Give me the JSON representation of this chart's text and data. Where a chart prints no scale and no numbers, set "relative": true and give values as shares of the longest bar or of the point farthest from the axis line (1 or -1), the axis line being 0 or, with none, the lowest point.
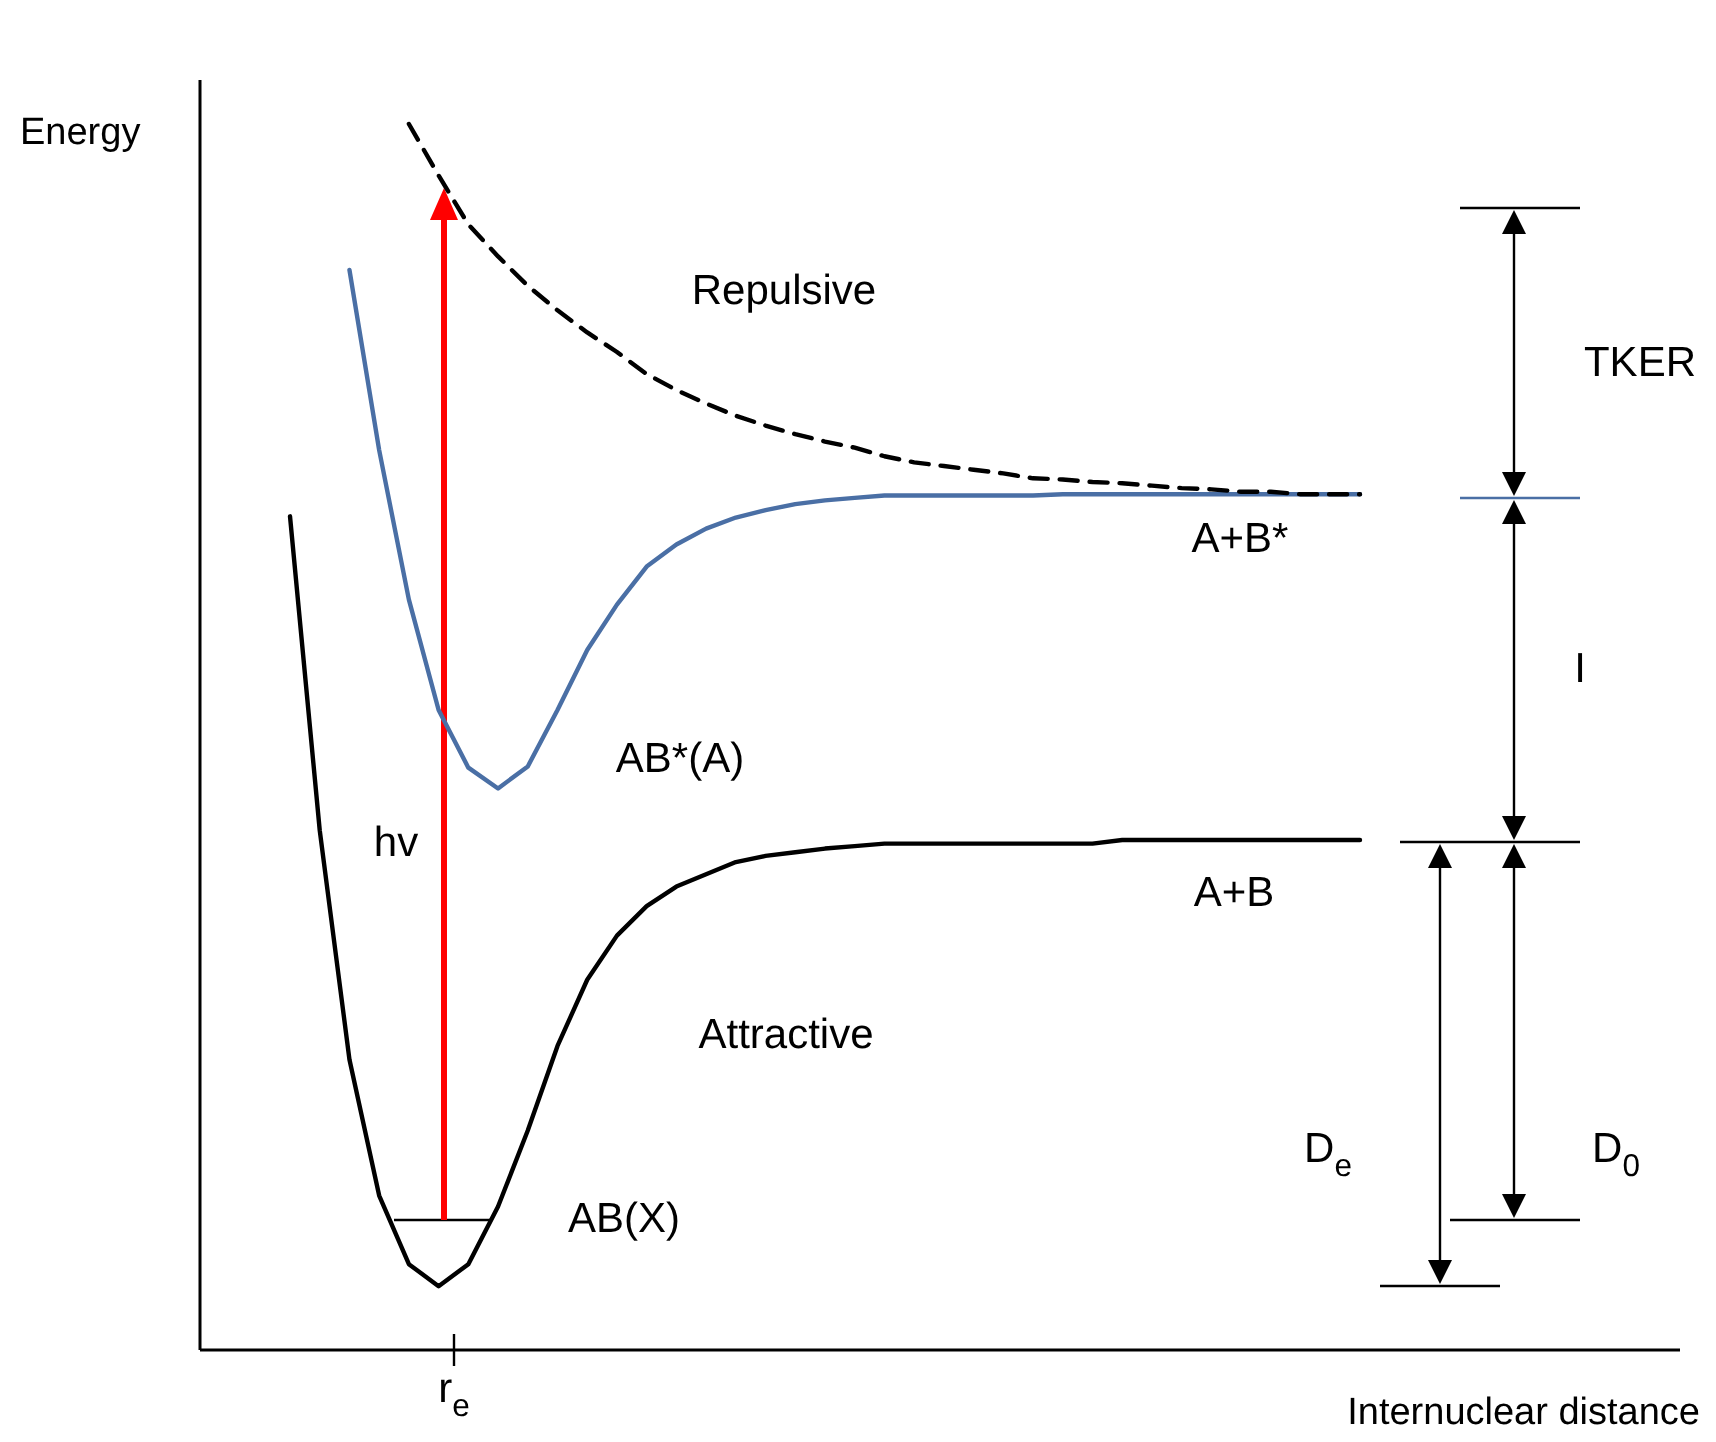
{
  "chart_data": {
    "type": "line",
    "relative": true,
    "xlabel": "Internuclear distance",
    "ylabel": "Energy",
    "categories": [
      null,
      null,
      null,
      null,
      null,
      null,
      null,
      null,
      null,
      null,
      null,
      null,
      null,
      null,
      null,
      null,
      null,
      null,
      null,
      null,
      null,
      null,
      null,
      null,
      null,
      null,
      null,
      null,
      null,
      null,
      null,
      null,
      null,
      null,
      null,
      null,
      null
    ],
    "series": [
      {
        "color": "#000000",
        "line_style": "solid",
        "values": [
          0.68,
          0.424,
          0.237,
          0.126,
          0.07,
          0.052,
          0.07,
          0.117,
          0.179,
          0.248,
          0.302,
          0.338,
          0.362,
          0.378,
          0.388,
          0.398,
          0.403,
          0.406,
          0.409,
          0.411,
          0.413,
          0.413,
          0.413,
          0.413,
          0.413,
          0.413,
          0.413,
          0.413,
          0.416,
          0.416,
          0.416,
          0.416,
          0.416,
          0.416,
          0.416,
          0.416,
          0.416
        ]
      },
      {
        "color": "#4a6fa5",
        "line_style": "solid",
        "values": [
          null,
          null,
          0.881,
          0.734,
          0.612,
          0.522,
          0.475,
          0.458,
          0.476,
          0.522,
          0.571,
          0.608,
          0.639,
          0.657,
          0.67,
          0.679,
          0.685,
          0.69,
          0.693,
          0.695,
          0.697,
          0.697,
          0.697,
          0.697,
          0.697,
          0.697,
          0.698,
          0.698,
          0.698,
          0.698,
          0.698,
          0.698,
          0.698,
          0.698,
          0.698,
          0.698,
          0.698
        ]
      },
      {
        "color": "#000000",
        "line_style": "dashed",
        "values": [
          null,
          null,
          null,
          null,
          1.0,
          0.958,
          0.918,
          0.892,
          0.868,
          0.848,
          0.83,
          0.814,
          0.796,
          0.783,
          0.772,
          0.762,
          0.754,
          0.747,
          0.741,
          0.736,
          0.729,
          0.724,
          0.721,
          0.718,
          0.715,
          0.711,
          0.71,
          0.708,
          0.707,
          0.705,
          0.703,
          0.702,
          0.7,
          0.7,
          0.698,
          0.698,
          0.698
        ]
      }
    ],
    "annotations": [
      "Repulsive",
      "A+B*",
      "TKER",
      "AB*(A)",
      "I",
      "hv",
      "A+B",
      "Attractive",
      "D$_{e}$",
      "D$_{0}$",
      "AB(X)",
      "r$_{e}$"
    ]
  }
}
